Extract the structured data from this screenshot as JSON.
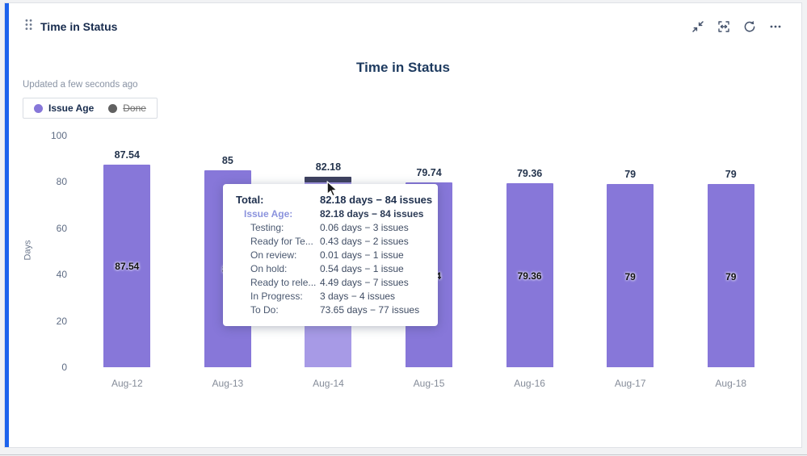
{
  "widget": {
    "title": "Time in Status",
    "accent_color": "#1d63ed",
    "actions": {
      "collapse": "collapse",
      "fit": "fit-to-screen",
      "refresh": "refresh",
      "more": "more-options"
    }
  },
  "chart": {
    "title": "Time in Status",
    "updated_text": "Updated a few seconds ago",
    "legend": [
      {
        "label": "Issue Age",
        "color": "#8777D9",
        "active": true
      },
      {
        "label": "Done",
        "color": "#616161",
        "active": false
      }
    ]
  },
  "chart_data": {
    "type": "bar",
    "title": "Time in Status",
    "series_name": "Issue Age",
    "categories": [
      "Aug-12",
      "Aug-13",
      "Aug-14",
      "Aug-15",
      "Aug-16",
      "Aug-17",
      "Aug-18"
    ],
    "values": [
      87.54,
      85,
      82.18,
      79.74,
      79.36,
      79,
      79
    ],
    "value_labels": [
      "87.54",
      "85",
      "82.18",
      "79.74",
      "79.36",
      "79",
      "79"
    ],
    "xlabel": "",
    "ylabel": "Days",
    "ylim": [
      0,
      100
    ],
    "yticks": [
      0,
      20,
      40,
      60,
      80,
      100
    ],
    "grid": false,
    "legend_position": "top-left",
    "bar_color": "#8777D9",
    "bar_hover_color": "#a79ae6",
    "hover_cap_color": "#3e415f",
    "hover_index": 2
  },
  "tooltip": {
    "rows": [
      {
        "label": "Total:",
        "value": "82.18 days − 84 issues",
        "kind": "total"
      },
      {
        "label": "Issue Age:",
        "value": "82.18 days − 84 issues",
        "kind": "series"
      },
      {
        "label": "Testing:",
        "value": "0.06 days − 3 issues",
        "kind": "sub"
      },
      {
        "label": "Ready for Te...",
        "value": "0.43 days − 2 issues",
        "kind": "sub"
      },
      {
        "label": "On review:",
        "value": "0.01 days − 1 issue",
        "kind": "sub"
      },
      {
        "label": "On hold:",
        "value": "0.54 days − 1 issue",
        "kind": "sub"
      },
      {
        "label": "Ready to rele...",
        "value": "4.49 days − 7 issues",
        "kind": "sub"
      },
      {
        "label": "In Progress:",
        "value": "3 days − 4 issues",
        "kind": "sub"
      },
      {
        "label": "To Do:",
        "value": "73.65 days − 77 issues",
        "kind": "sub"
      }
    ]
  }
}
